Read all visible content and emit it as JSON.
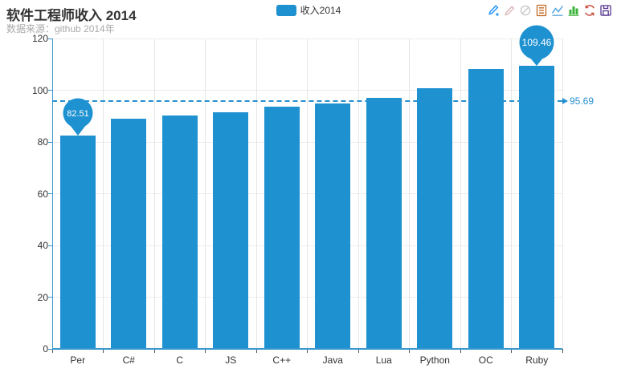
{
  "header": {
    "title": "软件工程师收入 2014",
    "subtitle": "数据来源：github 2014年"
  },
  "legend": {
    "items": [
      {
        "label": "收入2014",
        "color": "#1e91d0"
      }
    ]
  },
  "toolbox": {
    "icons": [
      {
        "name": "mark-line-icon",
        "color": "#1e90ff"
      },
      {
        "name": "mark-line-delete-icon",
        "color": "#d9b8b8"
      },
      {
        "name": "mark-line-clear-icon",
        "color": "#c9c9c9"
      },
      {
        "name": "data-view-icon",
        "color": "#c0671e"
      },
      {
        "name": "line-chart-type-icon",
        "color": "#4a9fdc"
      },
      {
        "name": "bar-chart-type-icon",
        "color": "#3bb33b"
      },
      {
        "name": "restore-icon",
        "color": "#c74a3c"
      },
      {
        "name": "save-image-icon",
        "color": "#55368f"
      }
    ]
  },
  "chart_data": {
    "type": "bar",
    "title": "软件工程师收入 2014",
    "subtitle": "数据来源：github 2014年",
    "legend_entries": [
      "收入2014"
    ],
    "categories": [
      "Per",
      "C#",
      "C",
      "JS",
      "C++",
      "Java",
      "Lua",
      "Python",
      "OC",
      "Ruby"
    ],
    "series": [
      {
        "name": "收入2014",
        "values": [
          82.51,
          89.07,
          90.13,
          91.46,
          93.5,
          94.91,
          96.91,
          100.72,
          108.23,
          109.46
        ]
      }
    ],
    "ylim": [
      0,
      120
    ],
    "yticks": [
      0,
      20,
      40,
      60,
      80,
      100,
      120
    ],
    "grid": true,
    "legend_position": "top-center",
    "bar_color": "#1e91d0",
    "axis_color": "#3a97cf",
    "average_line": {
      "value": 95.69,
      "label": "95.69"
    },
    "min_marker": {
      "category": "Per",
      "value": 82.51,
      "label": "82.51"
    },
    "max_marker": {
      "category": "Ruby",
      "value": 109.46,
      "label": "109.46"
    }
  }
}
